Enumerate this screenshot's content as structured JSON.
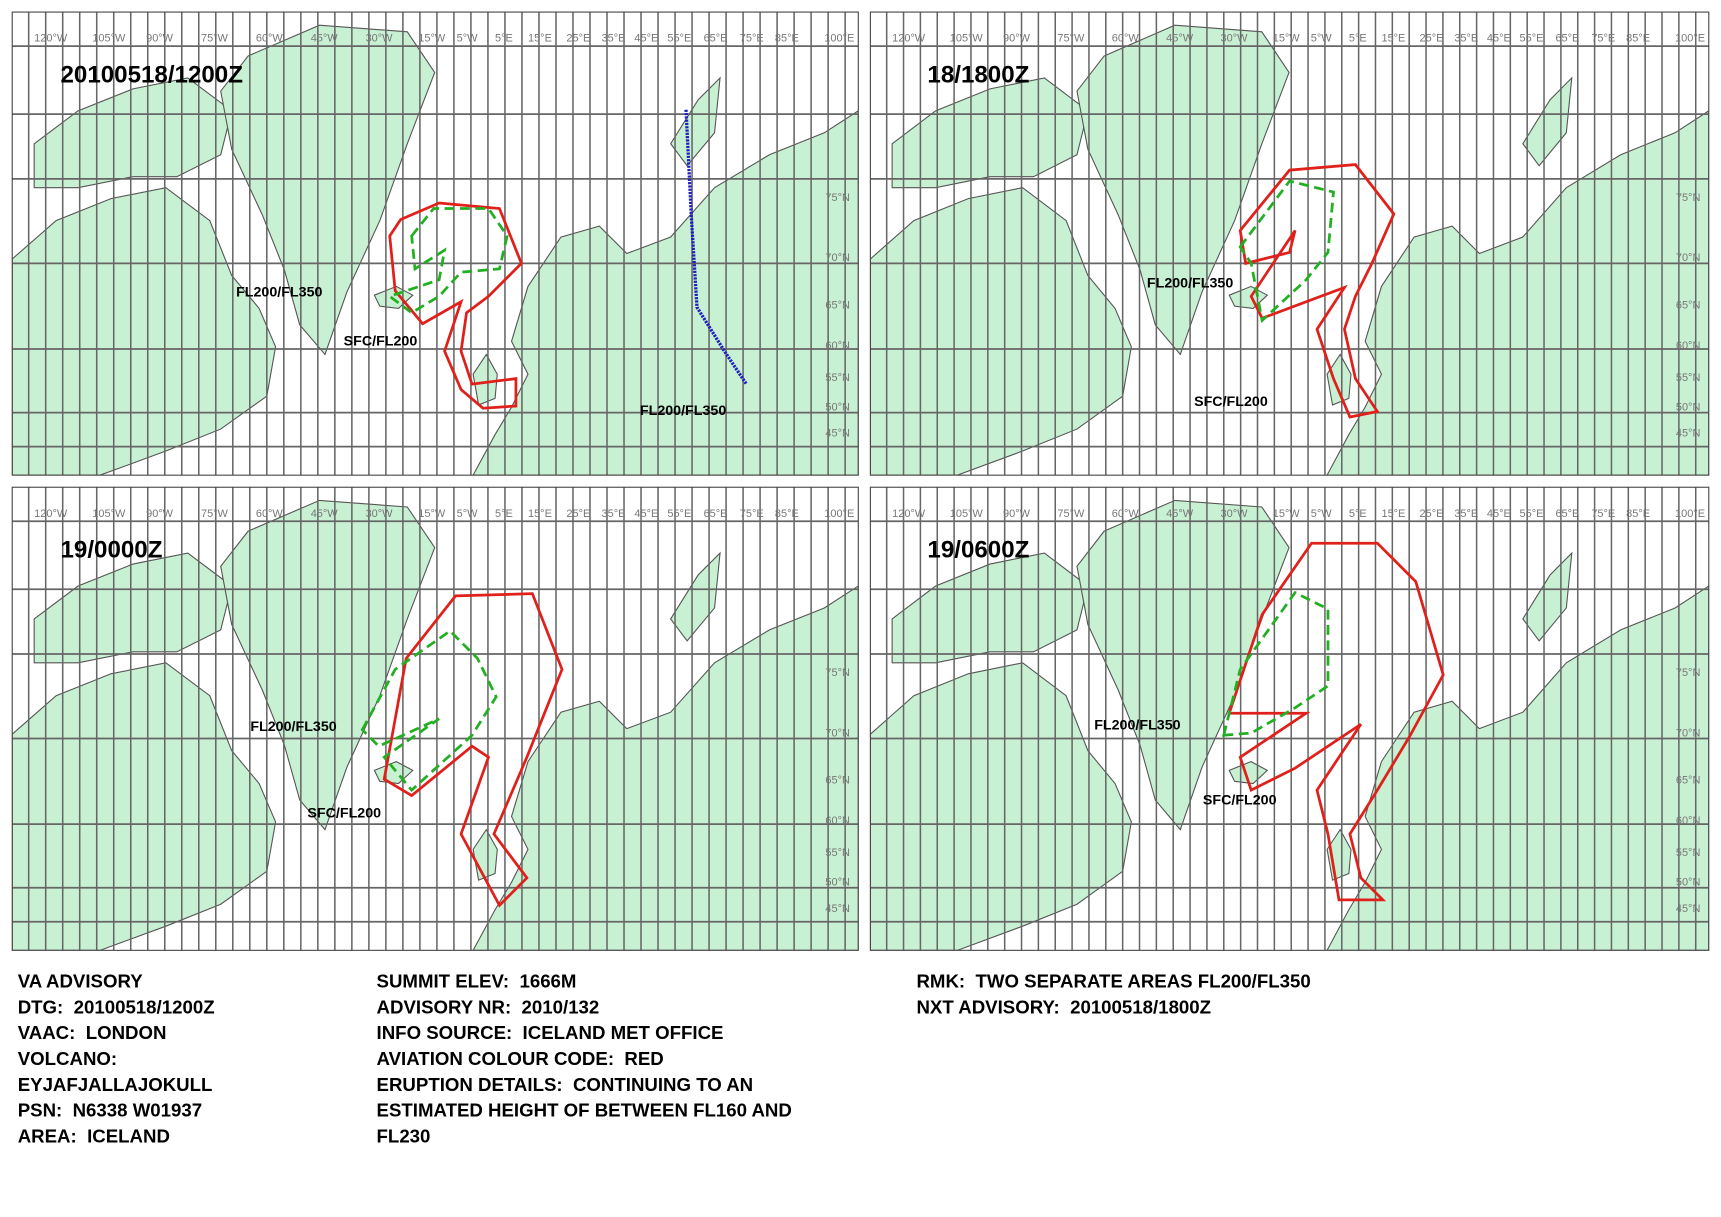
{
  "panels": [
    {
      "title": "20100518/1200Z",
      "labels": [
        "FL200/FL350",
        "SFC/FL200",
        "FL200/FL350"
      ]
    },
    {
      "title": "18/1800Z",
      "labels": [
        "FL200/FL350",
        "SFC/FL200"
      ]
    },
    {
      "title": "19/0000Z",
      "labels": [
        "FL200/FL350",
        "SFC/FL200"
      ]
    },
    {
      "title": "19/0600Z",
      "labels": [
        "FL200/FL350",
        "SFC/FL200"
      ]
    }
  ],
  "lon_labels": [
    "120°W",
    "105°W",
    "90°W",
    "75°W",
    "60°W",
    "45°W",
    "30°W",
    "15°W",
    "5°W",
    "5°E",
    "15°E",
    "25°E",
    "35°E",
    "45°E",
    "55°E",
    "65°E",
    "75°E",
    "85°E",
    "100°E"
  ],
  "lat_labels": [
    "75°N",
    "70°N",
    "65°N",
    "60°N",
    "55°N",
    "50°N",
    "45°N"
  ],
  "advisory": {
    "columns": [
      [
        "VA ADVISORY",
        "DTG:  20100518/1200Z",
        "VAAC:  LONDON",
        "VOLCANO:",
        "EYJAFJALLAJOKULL",
        "PSN:  N6338 W01937",
        "AREA:  ICELAND"
      ],
      [
        "SUMMIT ELEV:  1666M",
        "ADVISORY NR:  2010/132",
        "INFO SOURCE:  ICELAND MET OFFICE",
        "AVIATION COLOUR CODE:  RED",
        "ERUPTION DETAILS:  CONTINUING TO AN",
        "ESTIMATED HEIGHT OF BETWEEN FL160 AND",
        "FL230"
      ],
      [
        "RMK:  TWO SEPARATE AREAS FL200/FL350",
        "NXT ADVISORY:  20100518/1800Z"
      ]
    ]
  }
}
